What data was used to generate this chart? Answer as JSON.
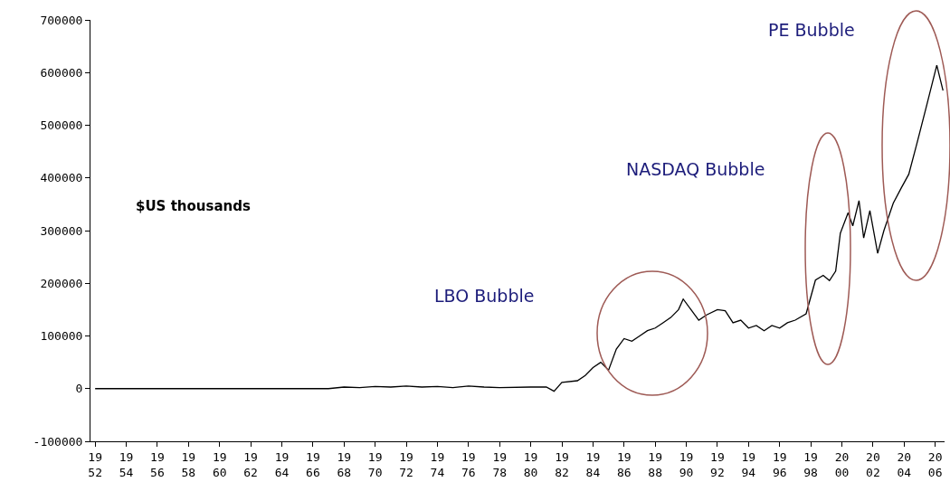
{
  "chart_data": {
    "type": "line",
    "x": [
      1952,
      1960,
      1967,
      1968,
      1969,
      1970,
      1971,
      1972,
      1973,
      1974,
      1975,
      1976,
      1977,
      1978,
      1980,
      1981,
      1981.5,
      1982,
      1983,
      1983.5,
      1984,
      1984.5,
      1985,
      1985.5,
      1986,
      1986.5,
      1987,
      1987.5,
      1988,
      1988.5,
      1989,
      1989.5,
      1989.8,
      1990.3,
      1990.8,
      1991.3,
      1992,
      1992.5,
      1993,
      1993.5,
      1994,
      1994.5,
      1995,
      1995.5,
      1996,
      1996.5,
      1997,
      1997.7,
      1998.3,
      1998.8,
      1999.2,
      1999.6,
      1999.9,
      2000.4,
      2000.7,
      2001.1,
      2001.4,
      2001.8,
      2002.3,
      2002.7,
      2003.3,
      2003.8,
      2004.3,
      2004.8,
      2005.4,
      2006.1,
      2006.5
    ],
    "series": [
      {
        "color": "#000000",
        "values": [
          0,
          0,
          0,
          3000,
          2000,
          4000,
          3000,
          5000,
          3000,
          4000,
          2000,
          5000,
          3000,
          2000,
          3000,
          3000,
          -5000,
          12000,
          15000,
          25000,
          40000,
          50000,
          35000,
          75000,
          95000,
          90000,
          100000,
          110000,
          115000,
          125000,
          135000,
          150000,
          170000,
          150000,
          130000,
          140000,
          150000,
          148000,
          125000,
          130000,
          115000,
          120000,
          110000,
          120000,
          115000,
          125000,
          130000,
          142000,
          206000,
          215000,
          205000,
          223000,
          295000,
          334000,
          309000,
          357000,
          286000,
          338000,
          257000,
          300000,
          352000,
          380000,
          407000,
          463000,
          532000,
          614000,
          566000
        ]
      }
    ],
    "xlim": [
      1951.7,
      2006.6
    ],
    "xticks": [
      1952,
      1954,
      1956,
      1958,
      1960,
      1962,
      1964,
      1966,
      1968,
      1970,
      1972,
      1974,
      1976,
      1978,
      1980,
      1982,
      1984,
      1986,
      1988,
      1990,
      1992,
      1994,
      1996,
      1998,
      2000,
      2002,
      2004,
      2006
    ],
    "ylim": [
      -100000,
      700000
    ],
    "yticks": [
      -100000,
      0,
      100000,
      200000,
      300000,
      400000,
      500000,
      600000,
      700000
    ],
    "line_style": "solid",
    "annotations": [
      "$US thousands",
      "LBO Bubble",
      "NASDAQ Bubble",
      "PE Bubble"
    ]
  }
}
